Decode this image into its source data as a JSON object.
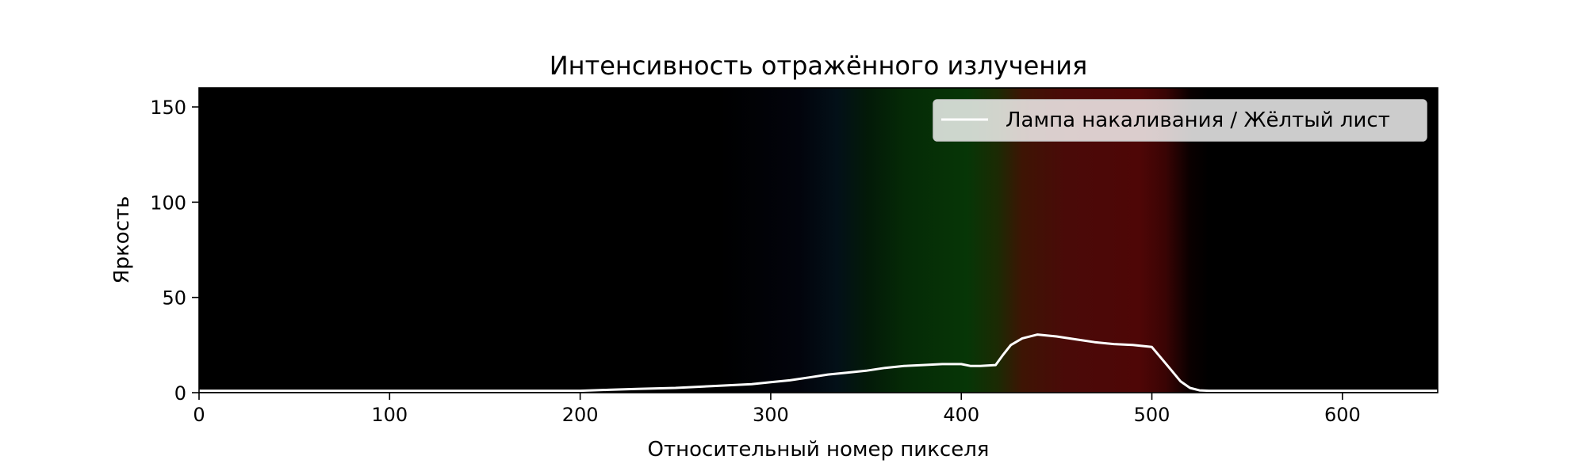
{
  "chart_data": {
    "type": "line",
    "title": "Интенсивность отражённого излучения",
    "xlabel": "Относительный номер пикселя",
    "ylabel": "Яркость",
    "xlim": [
      0,
      650
    ],
    "ylim": [
      0,
      160
    ],
    "x_ticks": [
      0,
      100,
      200,
      300,
      400,
      500,
      600
    ],
    "y_ticks": [
      0,
      50,
      100,
      150
    ],
    "grid": false,
    "legend_position": "top-right",
    "background": "spectrum image (blue → green → red band)",
    "series": [
      {
        "name": "Лампа накаливания / Жёлтый лист",
        "color": "#ffffff",
        "x": [
          0,
          50,
          100,
          150,
          200,
          215,
          230,
          250,
          270,
          290,
          300,
          310,
          320,
          330,
          340,
          350,
          360,
          370,
          380,
          390,
          400,
          405,
          410,
          418,
          422,
          426,
          432,
          440,
          450,
          460,
          470,
          480,
          490,
          500,
          505,
          510,
          515,
          520,
          525,
          530,
          540,
          600,
          650
        ],
        "y": [
          1,
          1,
          1,
          1,
          1,
          1.5,
          2,
          2.5,
          3.5,
          4.5,
          5.5,
          6.5,
          8,
          9.5,
          10.5,
          11.5,
          13,
          14,
          14.5,
          15,
          15,
          14,
          14,
          14.5,
          20,
          25,
          28.5,
          30.5,
          29.5,
          28,
          26.5,
          25.5,
          25,
          24,
          18,
          12,
          6,
          2.5,
          1.2,
          1,
          1,
          1,
          1
        ]
      }
    ]
  }
}
